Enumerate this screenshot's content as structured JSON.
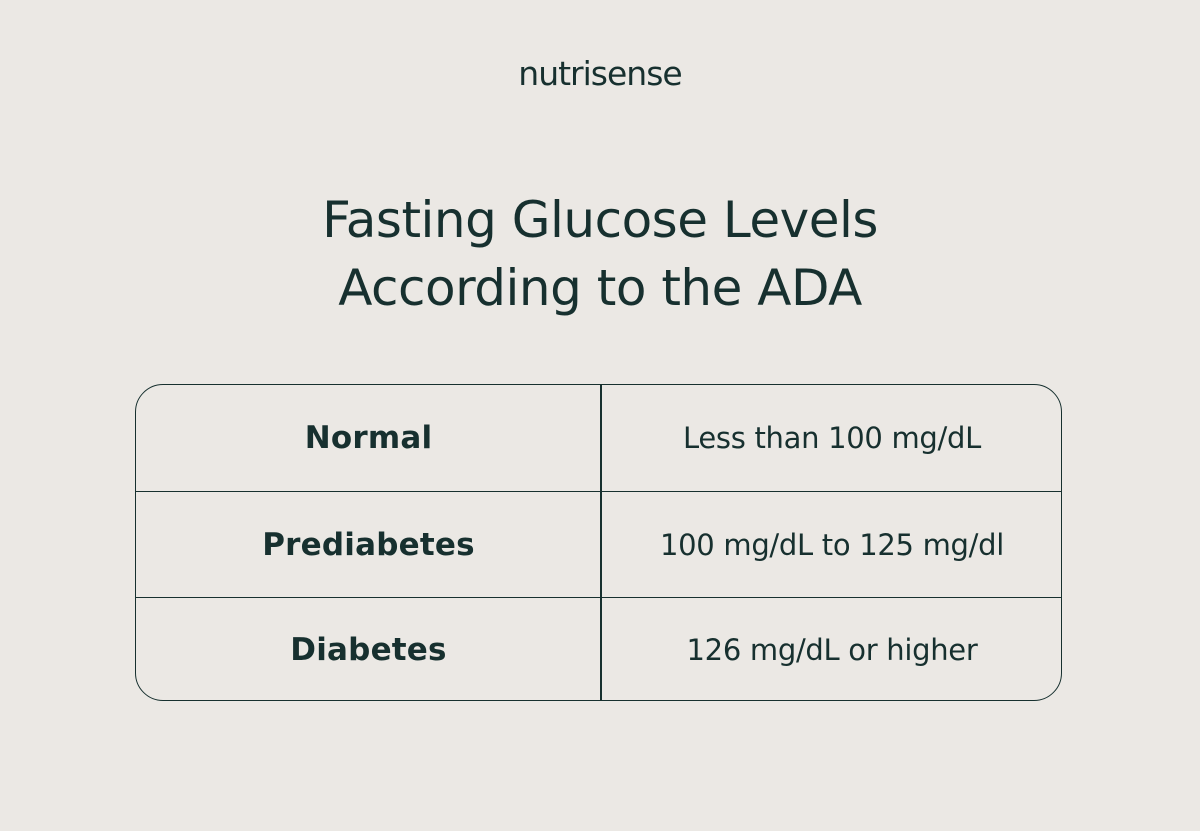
{
  "brand": {
    "logo_text": "nutrisense"
  },
  "header": {
    "title_line1": "Fasting Glucose Levels",
    "title_line2": "According to the ADA"
  },
  "table": {
    "rows": [
      {
        "label": "Normal",
        "value": "Less than 100 mg/dL"
      },
      {
        "label": "Prediabetes",
        "value": "100 mg/dL to 125 mg/dl"
      },
      {
        "label": "Diabetes",
        "value": "126 mg/dL or higher"
      }
    ]
  },
  "colors": {
    "background": "#ebe8e4",
    "text": "#17302f",
    "border": "#17302f"
  }
}
